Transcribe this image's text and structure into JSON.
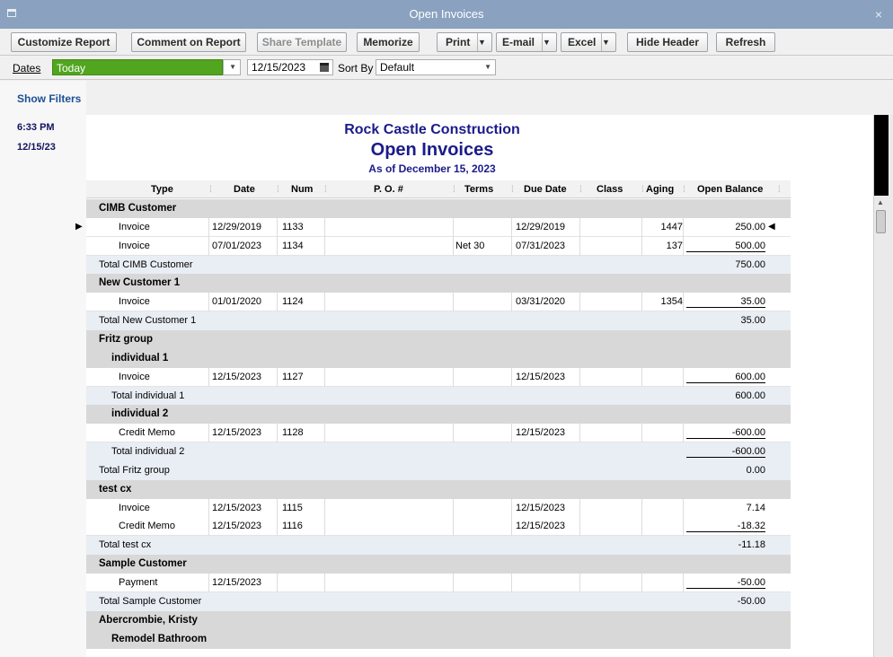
{
  "window": {
    "title": "Open Invoices",
    "close_glyph": "×"
  },
  "toolbar": {
    "customize": "Customize Report",
    "comment": "Comment on Report",
    "share": "Share Template",
    "memorize": "Memorize",
    "print": "Print",
    "email": "E-mail",
    "excel": "Excel",
    "hide_header": "Hide Header",
    "refresh": "Refresh"
  },
  "filters": {
    "dates_label": "Dates",
    "dates_value": "Today",
    "date": "12/15/2023",
    "sort_label": "Sort By",
    "sort_value": "Default",
    "show_filters": "Show Filters"
  },
  "report": {
    "time": "6:33 PM",
    "run_date": "12/15/23",
    "company": "Rock Castle Construction",
    "title": "Open Invoices",
    "as_of": "As of December 15, 2023",
    "columns": [
      "Type",
      "Date",
      "Num",
      "P. O. #",
      "Terms",
      "Due Date",
      "Class",
      "Aging",
      "Open Balance"
    ],
    "rows": [
      {
        "kind": "group",
        "level": 0,
        "name": "CIMB Customer"
      },
      {
        "kind": "detail",
        "level": 1,
        "type": "Invoice",
        "date": "12/29/2019",
        "num": "1133",
        "po": "",
        "terms": "",
        "due": "12/29/2019",
        "class": "",
        "aging": "1447",
        "balance": "250.00",
        "marked": true
      },
      {
        "kind": "detail",
        "level": 1,
        "type": "Invoice",
        "date": "07/01/2023",
        "num": "1134",
        "po": "",
        "terms": "Net 30",
        "due": "07/31/2023",
        "class": "",
        "aging": "137",
        "balance": "500.00",
        "underline": true
      },
      {
        "kind": "total",
        "level": 0,
        "name": "Total CIMB Customer",
        "balance": "750.00"
      },
      {
        "kind": "group",
        "level": 0,
        "name": "New Customer 1"
      },
      {
        "kind": "detail",
        "level": 1,
        "type": "Invoice",
        "date": "01/01/2020",
        "num": "1124",
        "po": "",
        "terms": "",
        "due": "03/31/2020",
        "class": "",
        "aging": "1354",
        "balance": "35.00",
        "underline": true
      },
      {
        "kind": "total",
        "level": 0,
        "name": "Total New Customer 1",
        "balance": "35.00"
      },
      {
        "kind": "group",
        "level": 0,
        "name": "Fritz group"
      },
      {
        "kind": "group",
        "level": 1,
        "name": "individual 1"
      },
      {
        "kind": "detail",
        "level": 1,
        "type": "Invoice",
        "date": "12/15/2023",
        "num": "1127",
        "po": "",
        "terms": "",
        "due": "12/15/2023",
        "class": "",
        "aging": "",
        "balance": "600.00",
        "underline": true
      },
      {
        "kind": "total",
        "level": 1,
        "name": "Total individual 1",
        "balance": "600.00"
      },
      {
        "kind": "group",
        "level": 1,
        "name": "individual 2"
      },
      {
        "kind": "detail",
        "level": 1,
        "type": "Credit Memo",
        "date": "12/15/2023",
        "num": "1128",
        "po": "",
        "terms": "",
        "due": "12/15/2023",
        "class": "",
        "aging": "",
        "balance": "-600.00",
        "underline": true
      },
      {
        "kind": "total",
        "level": 1,
        "name": "Total individual 2",
        "balance": "-600.00",
        "underline": true
      },
      {
        "kind": "total",
        "level": 0,
        "name": "Total Fritz group",
        "balance": "0.00"
      },
      {
        "kind": "group",
        "level": 0,
        "name": "test cx"
      },
      {
        "kind": "detail",
        "level": 1,
        "type": "Invoice",
        "date": "12/15/2023",
        "num": "1115",
        "po": "",
        "terms": "",
        "due": "12/15/2023",
        "class": "",
        "aging": "",
        "balance": "7.14"
      },
      {
        "kind": "detail",
        "level": 1,
        "type": "Credit Memo",
        "date": "12/15/2023",
        "num": "1116",
        "po": "",
        "terms": "",
        "due": "12/15/2023",
        "class": "",
        "aging": "",
        "balance": "-18.32",
        "underline": true
      },
      {
        "kind": "total",
        "level": 0,
        "name": "Total test cx",
        "balance": "-11.18"
      },
      {
        "kind": "group",
        "level": 0,
        "name": "Sample Customer"
      },
      {
        "kind": "detail",
        "level": 1,
        "type": "Payment",
        "date": "12/15/2023",
        "num": "",
        "po": "",
        "terms": "",
        "due": "",
        "class": "",
        "aging": "",
        "balance": "-50.00",
        "underline": true
      },
      {
        "kind": "total",
        "level": 0,
        "name": "Total Sample Customer",
        "balance": "-50.00"
      },
      {
        "kind": "group",
        "level": 0,
        "name": "Abercrombie, Kristy"
      },
      {
        "kind": "group",
        "level": 1,
        "name": "Remodel Bathroom"
      }
    ]
  }
}
